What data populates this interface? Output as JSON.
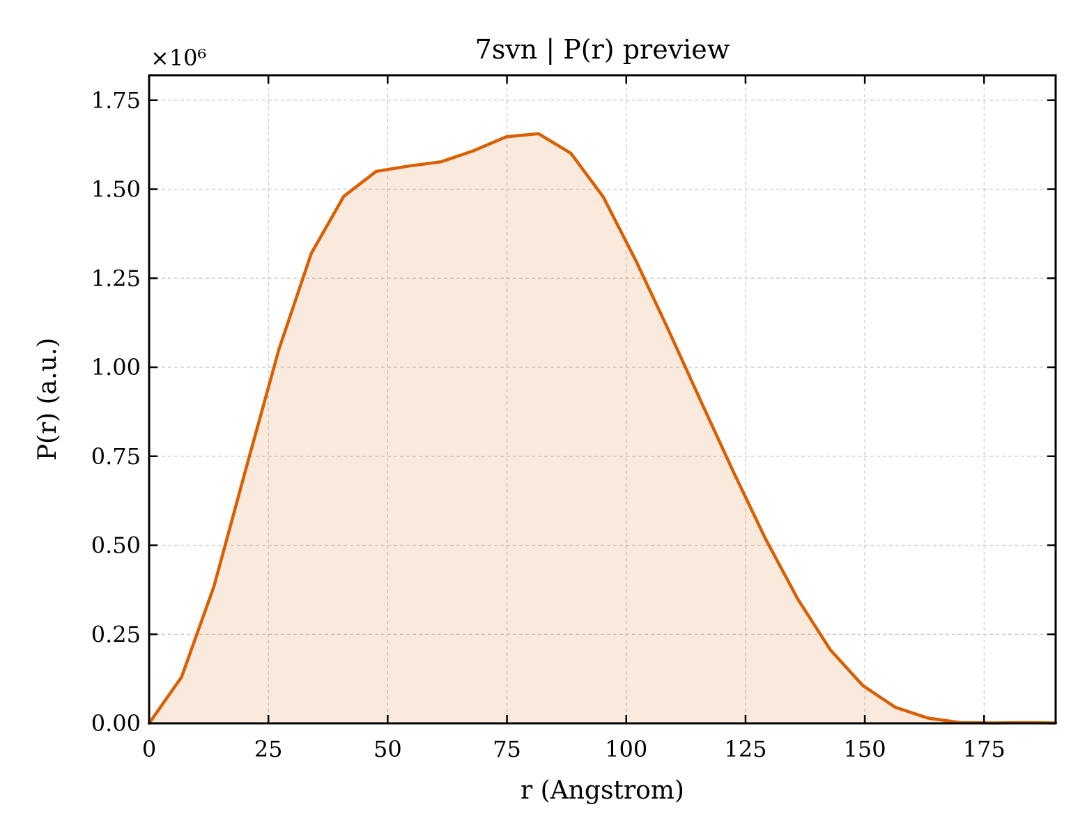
{
  "chart_data": {
    "type": "area",
    "title": "7svn | P(r) preview",
    "xlabel": "r (Angstrom)",
    "ylabel": "P(r) (a.u.)",
    "y_offset_label": "×10⁶",
    "y_multiplier": 1000000,
    "xlim": [
      0,
      190
    ],
    "ylim": [
      0,
      1.82
    ],
    "xticks": [
      0,
      25,
      50,
      75,
      100,
      125,
      150,
      175
    ],
    "xtick_labels": [
      "0",
      "25",
      "50",
      "75",
      "100",
      "125",
      "150",
      "175"
    ],
    "yticks": [
      0,
      0.25,
      0.5,
      0.75,
      1.0,
      1.25,
      1.5,
      1.75
    ],
    "ytick_labels": [
      "0.00",
      "0.25",
      "0.50",
      "0.75",
      "1.00",
      "1.25",
      "1.50",
      "1.75"
    ],
    "grid": true,
    "legend": "none",
    "series": [
      {
        "color": "#d95f02",
        "fill_color": "#d95f02",
        "fill_opacity": 0.13,
        "x": [
          0,
          6.8,
          13.6,
          20.4,
          27.2,
          34.0,
          40.8,
          47.6,
          54.4,
          61.2,
          68.0,
          74.8,
          81.6,
          88.4,
          95.2,
          102.0,
          108.8,
          115.6,
          122.4,
          129.2,
          136.0,
          142.8,
          149.6,
          156.4,
          163.2,
          170.0,
          176.8,
          183.6,
          190.0
        ],
        "y": [
          0.0,
          0.13,
          0.385,
          0.72,
          1.05,
          1.32,
          1.48,
          1.55,
          1.565,
          1.577,
          1.608,
          1.647,
          1.656,
          1.601,
          1.478,
          1.3,
          1.106,
          0.906,
          0.708,
          0.518,
          0.348,
          0.206,
          0.106,
          0.045,
          0.015,
          0.002,
          0.001,
          0.002,
          0.001
        ]
      }
    ]
  }
}
